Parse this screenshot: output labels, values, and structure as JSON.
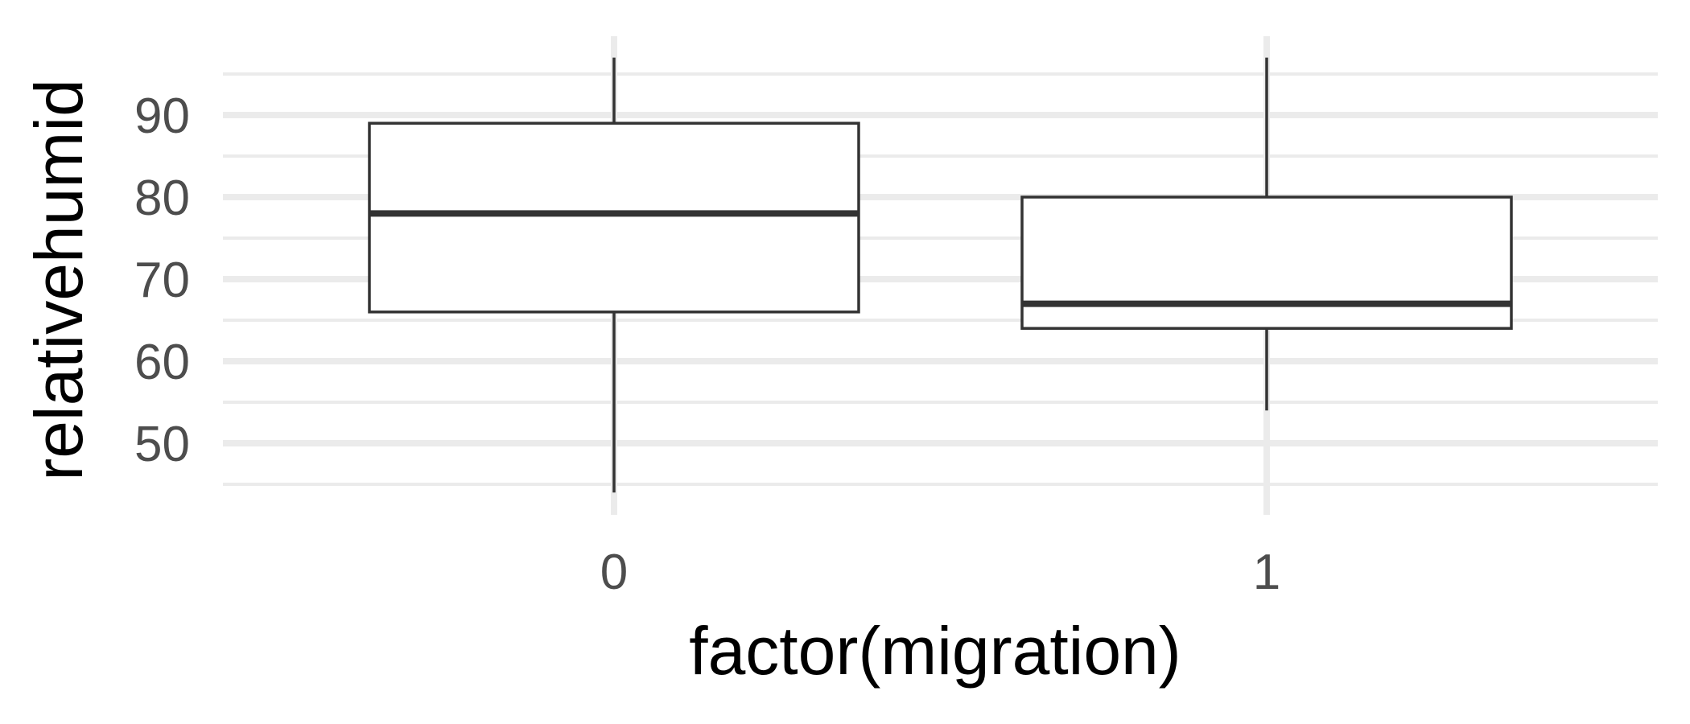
{
  "chart_data": {
    "type": "boxplot",
    "xlabel": "factor(migration)",
    "ylabel": "relativehumid",
    "categories": [
      "0",
      "1"
    ],
    "boxes": [
      {
        "category": "0",
        "whisker_low": 44,
        "q1": 66,
        "median": 78,
        "q3": 89,
        "whisker_high": 97
      },
      {
        "category": "1",
        "whisker_low": 54,
        "q1": 64,
        "median": 67,
        "q3": 80,
        "whisker_high": 97
      }
    ],
    "y_ticks": [
      50,
      60,
      70,
      80,
      90
    ],
    "ylim": [
      43,
      99
    ],
    "grid": true,
    "colors": {
      "grid": "#ebebeb",
      "box_stroke": "#333333",
      "box_fill": "#ffffff",
      "tick_text": "#4d4d4d",
      "title_text": "#000000"
    }
  }
}
